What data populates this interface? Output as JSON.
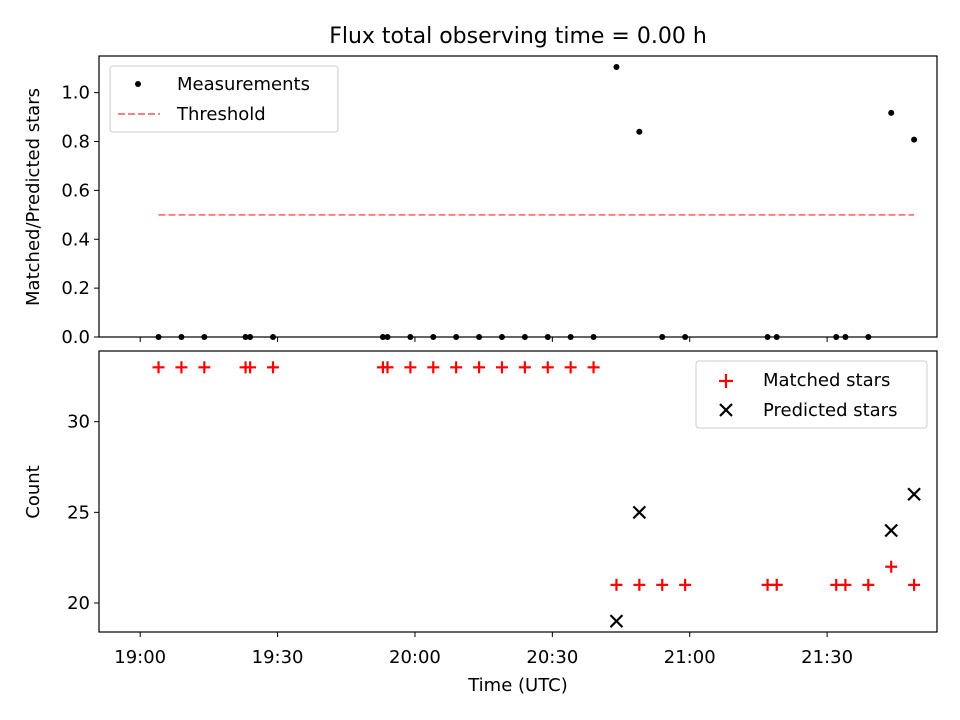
{
  "chart_data": [
    {
      "type": "scatter",
      "title": "Flux total observing time = 0.00 h",
      "xlabel": "",
      "ylabel": "Matched/Predicted stars",
      "ylim": [
        0,
        1.15
      ],
      "yticks": [
        "0.0",
        "0.2",
        "0.4",
        "0.6",
        "0.8",
        "1.0"
      ],
      "ytick_values": [
        0,
        0.2,
        0.4,
        0.6,
        0.8,
        1.0
      ],
      "xlim": [
        "18:51",
        "21:54"
      ],
      "x_tick_marks": [
        "19:00",
        "19:30",
        "20:00",
        "20:30",
        "21:00",
        "21:30"
      ],
      "legend_position": "top-left",
      "series": [
        {
          "name": "Measurements",
          "marker": "dot",
          "color": "#000000",
          "x": [
            "19:04",
            "19:09",
            "19:14",
            "19:23",
            "19:24",
            "19:29",
            "19:53",
            "19:54",
            "19:59",
            "20:04",
            "20:09",
            "20:14",
            "20:19",
            "20:24",
            "20:29",
            "20:34",
            "20:39",
            "20:44",
            "20:49",
            "20:54",
            "20:59",
            "21:17",
            "21:19",
            "21:32",
            "21:34",
            "21:39",
            "21:44",
            "21:49"
          ],
          "y": [
            0,
            0,
            0,
            0,
            0,
            0,
            0,
            0,
            0,
            0,
            0,
            0,
            0,
            0,
            0,
            0,
            0,
            1.105,
            0.84,
            0,
            0,
            0,
            0,
            0,
            0,
            0,
            0.917,
            0.808
          ]
        },
        {
          "name": "Threshold",
          "style": "dashed",
          "color": "#ff7f7f",
          "x": [
            "19:04",
            "21:49"
          ],
          "y": [
            0.5,
            0.5
          ]
        }
      ]
    },
    {
      "type": "scatter",
      "title": "",
      "xlabel": "Time (UTC)",
      "ylabel": "Count",
      "ylim": [
        18.4,
        33.9
      ],
      "yticks": [
        "20",
        "25",
        "30"
      ],
      "ytick_values": [
        20,
        25,
        30
      ],
      "xlim": [
        "18:51",
        "21:54"
      ],
      "xticks": [
        "19:00",
        "19:30",
        "20:00",
        "20:30",
        "21:00",
        "21:30"
      ],
      "legend_position": "top-right",
      "series": [
        {
          "name": "Matched stars",
          "marker": "plus",
          "color": "#ff0000",
          "x": [
            "19:04",
            "19:09",
            "19:14",
            "19:23",
            "19:24",
            "19:29",
            "19:53",
            "19:54",
            "19:59",
            "20:04",
            "20:09",
            "20:14",
            "20:19",
            "20:24",
            "20:29",
            "20:34",
            "20:39",
            "20:44",
            "20:49",
            "20:54",
            "20:59",
            "21:17",
            "21:19",
            "21:32",
            "21:34",
            "21:39",
            "21:44",
            "21:49"
          ],
          "y": [
            33,
            33,
            33,
            33,
            33,
            33,
            33,
            33,
            33,
            33,
            33,
            33,
            33,
            33,
            33,
            33,
            33,
            21,
            21,
            21,
            21,
            21,
            21,
            21,
            21,
            21,
            22,
            21
          ]
        },
        {
          "name": "Predicted stars",
          "marker": "x",
          "color": "#000000",
          "x": [
            "20:44",
            "20:49",
            "21:44",
            "21:49"
          ],
          "y": [
            19,
            25,
            24,
            26
          ]
        }
      ]
    }
  ]
}
